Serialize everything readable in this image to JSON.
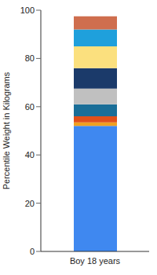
{
  "chart_data": {
    "type": "bar",
    "stacked": true,
    "y_label": "Percentile Weight in Kilograms",
    "categories": [
      "Boy 18 years"
    ],
    "series": [
      {
        "color": "#3f88f0",
        "values": [
          52
        ]
      },
      {
        "color": "#f0a020",
        "values": [
          1.5
        ]
      },
      {
        "color": "#e0501a",
        "values": [
          2.5
        ]
      },
      {
        "color": "#1a6e98",
        "values": [
          5
        ]
      },
      {
        "color": "#c0c0c0",
        "values": [
          6.5
        ]
      },
      {
        "color": "#1b3a6a",
        "values": [
          8.5
        ]
      },
      {
        "color": "#fbe07e",
        "values": [
          9
        ]
      },
      {
        "color": "#1fa0dc",
        "values": [
          7
        ]
      },
      {
        "color": "#cf6e4e",
        "values": [
          5.5
        ]
      }
    ],
    "ylim": [
      0,
      100
    ],
    "yticks": [
      0,
      20,
      40,
      60,
      80,
      100
    ],
    "grid": false
  }
}
